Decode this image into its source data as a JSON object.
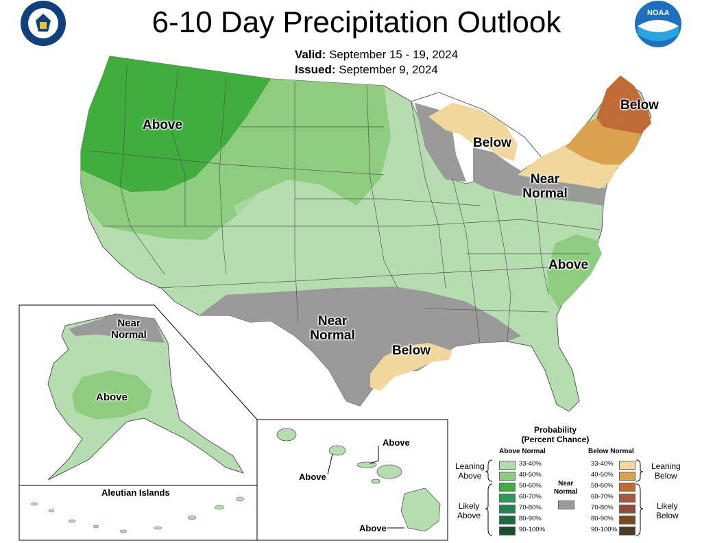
{
  "header": {
    "title": "6-10 Day Precipitation Outlook",
    "valid_label": "Valid:",
    "valid_value": "September 15 - 19, 2024",
    "issued_label": "Issued:",
    "issued_value": "September 9, 2024"
  },
  "logos": {
    "left": "department-of-commerce-seal",
    "right": "noaa-logo",
    "right_text": "NOAA"
  },
  "map_labels": {
    "northwest": "Above",
    "northeast": "Below",
    "great_lakes": "Below",
    "mid_atlantic_1": "Near",
    "mid_atlantic_2": "Normal",
    "southeast": "Above",
    "texas_1": "Near",
    "texas_2": "Normal",
    "gulf": "Below",
    "alaska_north_1": "Near",
    "alaska_north_2": "Normal",
    "alaska_central": "Above",
    "aleutian": "Aleutian Islands",
    "hawaii_1": "Above",
    "hawaii_2": "Above",
    "hawaii_3": "Above"
  },
  "legend": {
    "title_1": "Probability",
    "title_2": "(Percent Chance)",
    "above_head": "Above Normal",
    "below_head": "Below Normal",
    "near_1": "Near",
    "near_2": "Normal",
    "leaning_above_1": "Leaning",
    "leaning_above_2": "Above",
    "likely_above_1": "Likely",
    "likely_above_2": "Above",
    "leaning_below_1": "Leaning",
    "leaning_below_2": "Below",
    "likely_below_1": "Likely",
    "likely_below_2": "Below",
    "ranges": [
      "33-40%",
      "40-50%",
      "50-60%",
      "60-70%",
      "70-80%",
      "80-90%",
      "90-100%"
    ],
    "above_colors": [
      "#b3dcae",
      "#8ecc80",
      "#3fae3c",
      "#2b9a58",
      "#208552",
      "#1a6b3e",
      "#1a4d2c"
    ],
    "below_colors": [
      "#f1d79a",
      "#daa24f",
      "#c06a36",
      "#a85838",
      "#944a3a",
      "#7a4a1a",
      "#4a3a2a"
    ],
    "near_color": "#9a9a9a"
  }
}
